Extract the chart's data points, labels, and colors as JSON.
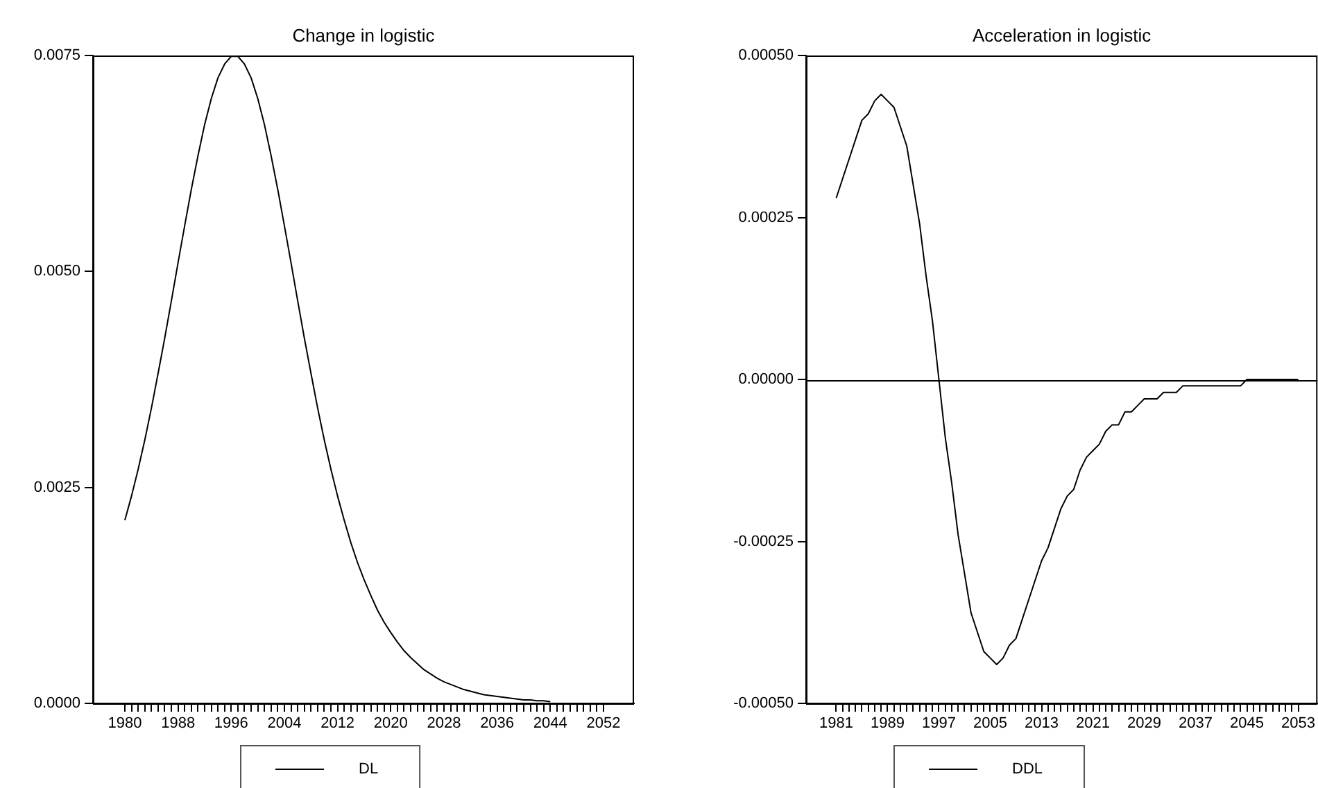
{
  "chart_data": [
    {
      "type": "line",
      "title": "Change in logistic",
      "legend": "bottom",
      "x": [
        1980,
        1981,
        1982,
        1983,
        1984,
        1985,
        1986,
        1987,
        1988,
        1989,
        1990,
        1991,
        1992,
        1993,
        1994,
        1995,
        1996,
        1997,
        1998,
        1999,
        2000,
        2001,
        2002,
        2003,
        2004,
        2005,
        2006,
        2007,
        2008,
        2009,
        2010,
        2011,
        2012,
        2013,
        2014,
        2015,
        2016,
        2017,
        2018,
        2019,
        2020,
        2021,
        2022,
        2023,
        2024,
        2025,
        2026,
        2027,
        2028,
        2029,
        2030,
        2031,
        2032,
        2033,
        2034,
        2035,
        2036,
        2037,
        2038,
        2039,
        2040,
        2041,
        2042,
        2043,
        2044
      ],
      "series": [
        {
          "name": "DL",
          "color": "#000000",
          "values": [
            0.00212,
            0.0024,
            0.00271,
            0.00305,
            0.00342,
            0.00382,
            0.00423,
            0.00466,
            0.0051,
            0.00553,
            0.00595,
            0.00634,
            0.0067,
            0.007,
            0.00724,
            0.0074,
            0.00749,
            0.00749,
            0.0074,
            0.00724,
            0.007,
            0.0067,
            0.00634,
            0.00595,
            0.00553,
            0.0051,
            0.00466,
            0.00423,
            0.00382,
            0.00342,
            0.00305,
            0.00271,
            0.0024,
            0.00212,
            0.00186,
            0.00163,
            0.00143,
            0.00125,
            0.00108,
            0.00094,
            0.00082,
            0.00071,
            0.00061,
            0.00053,
            0.00046,
            0.00039,
            0.00034,
            0.00029,
            0.00025,
            0.00022,
            0.00019,
            0.00016,
            0.00014,
            0.00012,
            0.0001,
            9e-05,
            8e-05,
            7e-05,
            6e-05,
            5e-05,
            4e-05,
            4e-05,
            3e-05,
            3e-05,
            2e-05
          ]
        }
      ],
      "xlim": [
        1975.2,
        2056.6
      ],
      "xticks": [
        {
          "value": 1980,
          "label": "1980"
        },
        {
          "value": 1981,
          "label": null
        },
        {
          "value": 1982,
          "label": null
        },
        {
          "value": 1983,
          "label": null
        },
        {
          "value": 1984,
          "label": null
        },
        {
          "value": 1985,
          "label": null
        },
        {
          "value": 1986,
          "label": null
        },
        {
          "value": 1987,
          "label": null
        },
        {
          "value": 1988,
          "label": "1988"
        },
        {
          "value": 1989,
          "label": null
        },
        {
          "value": 1990,
          "label": null
        },
        {
          "value": 1991,
          "label": null
        },
        {
          "value": 1992,
          "label": null
        },
        {
          "value": 1993,
          "label": null
        },
        {
          "value": 1994,
          "label": null
        },
        {
          "value": 1995,
          "label": null
        },
        {
          "value": 1996,
          "label": "1996"
        },
        {
          "value": 1997,
          "label": null
        },
        {
          "value": 1998,
          "label": null
        },
        {
          "value": 1999,
          "label": null
        },
        {
          "value": 2000,
          "label": null
        },
        {
          "value": 2001,
          "label": null
        },
        {
          "value": 2002,
          "label": null
        },
        {
          "value": 2003,
          "label": null
        },
        {
          "value": 2004,
          "label": "2004"
        },
        {
          "value": 2005,
          "label": null
        },
        {
          "value": 2006,
          "label": null
        },
        {
          "value": 2007,
          "label": null
        },
        {
          "value": 2008,
          "label": null
        },
        {
          "value": 2009,
          "label": null
        },
        {
          "value": 2010,
          "label": null
        },
        {
          "value": 2011,
          "label": null
        },
        {
          "value": 2012,
          "label": "2012"
        },
        {
          "value": 2013,
          "label": null
        },
        {
          "value": 2014,
          "label": null
        },
        {
          "value": 2015,
          "label": null
        },
        {
          "value": 2016,
          "label": null
        },
        {
          "value": 2017,
          "label": null
        },
        {
          "value": 2018,
          "label": null
        },
        {
          "value": 2019,
          "label": null
        },
        {
          "value": 2020,
          "label": "2020"
        },
        {
          "value": 2021,
          "label": null
        },
        {
          "value": 2022,
          "label": null
        },
        {
          "value": 2023,
          "label": null
        },
        {
          "value": 2024,
          "label": null
        },
        {
          "value": 2025,
          "label": null
        },
        {
          "value": 2026,
          "label": null
        },
        {
          "value": 2027,
          "label": null
        },
        {
          "value": 2028,
          "label": "2028"
        },
        {
          "value": 2029,
          "label": null
        },
        {
          "value": 2030,
          "label": null
        },
        {
          "value": 2031,
          "label": null
        },
        {
          "value": 2032,
          "label": null
        },
        {
          "value": 2033,
          "label": null
        },
        {
          "value": 2034,
          "label": null
        },
        {
          "value": 2035,
          "label": null
        },
        {
          "value": 2036,
          "label": "2036"
        },
        {
          "value": 2037,
          "label": null
        },
        {
          "value": 2038,
          "label": null
        },
        {
          "value": 2039,
          "label": null
        },
        {
          "value": 2040,
          "label": null
        },
        {
          "value": 2041,
          "label": null
        },
        {
          "value": 2042,
          "label": null
        },
        {
          "value": 2043,
          "label": null
        },
        {
          "value": 2044,
          "label": "2044"
        },
        {
          "value": 2045,
          "label": null
        },
        {
          "value": 2046,
          "label": null
        },
        {
          "value": 2047,
          "label": null
        },
        {
          "value": 2048,
          "label": null
        },
        {
          "value": 2049,
          "label": null
        },
        {
          "value": 2050,
          "label": null
        },
        {
          "value": 2051,
          "label": null
        },
        {
          "value": 2052,
          "label": "2052"
        }
      ],
      "ylim": [
        0,
        0.0075
      ],
      "yticks": [
        {
          "value": 0,
          "label": "0.0000"
        },
        {
          "value": 0.0025,
          "label": "0.0025"
        },
        {
          "value": 0.005,
          "label": "0.0050"
        },
        {
          "value": 0.0075,
          "label": "0.0075"
        }
      ]
    },
    {
      "type": "line",
      "title": "Acceleration in logistic",
      "legend": "bottom",
      "x": [
        1981,
        1982,
        1983,
        1984,
        1985,
        1986,
        1987,
        1988,
        1989,
        1990,
        1991,
        1992,
        1993,
        1994,
        1995,
        1996,
        1997,
        1998,
        1999,
        2000,
        2001,
        2002,
        2003,
        2004,
        2005,
        2006,
        2007,
        2008,
        2009,
        2010,
        2011,
        2012,
        2013,
        2014,
        2015,
        2016,
        2017,
        2018,
        2019,
        2020,
        2021,
        2022,
        2023,
        2024,
        2025,
        2026,
        2027,
        2028,
        2029,
        2030,
        2031,
        2032,
        2033,
        2034,
        2035,
        2036,
        2037,
        2038,
        2039,
        2040,
        2041,
        2042,
        2043,
        2044,
        2045,
        2046,
        2047,
        2048,
        2049,
        2050,
        2051,
        2052,
        2053
      ],
      "series": [
        {
          "name": "DDL",
          "color": "#000000",
          "values": [
            0.00028,
            0.00031,
            0.00034,
            0.00037,
            0.0004,
            0.00041,
            0.00043,
            0.00044,
            0.00043,
            0.00042,
            0.00039,
            0.00036,
            0.0003,
            0.00024,
            0.00016,
            9e-05,
            0,
            -9e-05,
            -0.00016,
            -0.00024,
            -0.0003,
            -0.00036,
            -0.00039,
            -0.00042,
            -0.00043,
            -0.00044,
            -0.00043,
            -0.00041,
            -0.0004,
            -0.00037,
            -0.00034,
            -0.00031,
            -0.00028,
            -0.00026,
            -0.00023,
            -0.0002,
            -0.00018,
            -0.00017,
            -0.00014,
            -0.00012,
            -0.00011,
            -0.0001,
            -8e-05,
            -7e-05,
            -7e-05,
            -5e-05,
            -5e-05,
            -4e-05,
            -3e-05,
            -3e-05,
            -3e-05,
            -2e-05,
            -2e-05,
            -2e-05,
            -1e-05,
            -1e-05,
            -1e-05,
            -1e-05,
            -1e-05,
            -1e-05,
            -1e-05,
            -1e-05,
            -1e-05,
            -1e-05,
            0,
            0,
            0,
            0,
            0,
            0,
            0,
            0,
            0
          ]
        }
      ],
      "xlim": [
        1976.3,
        2056
      ],
      "xticks": [
        {
          "value": 1981,
          "label": "1981"
        },
        {
          "value": 1982,
          "label": null
        },
        {
          "value": 1983,
          "label": null
        },
        {
          "value": 1984,
          "label": null
        },
        {
          "value": 1985,
          "label": null
        },
        {
          "value": 1986,
          "label": null
        },
        {
          "value": 1987,
          "label": null
        },
        {
          "value": 1988,
          "label": null
        },
        {
          "value": 1989,
          "label": "1989"
        },
        {
          "value": 1990,
          "label": null
        },
        {
          "value": 1991,
          "label": null
        },
        {
          "value": 1992,
          "label": null
        },
        {
          "value": 1993,
          "label": null
        },
        {
          "value": 1994,
          "label": null
        },
        {
          "value": 1995,
          "label": null
        },
        {
          "value": 1996,
          "label": null
        },
        {
          "value": 1997,
          "label": "1997"
        },
        {
          "value": 1998,
          "label": null
        },
        {
          "value": 1999,
          "label": null
        },
        {
          "value": 2000,
          "label": null
        },
        {
          "value": 2001,
          "label": null
        },
        {
          "value": 2002,
          "label": null
        },
        {
          "value": 2003,
          "label": null
        },
        {
          "value": 2004,
          "label": null
        },
        {
          "value": 2005,
          "label": "2005"
        },
        {
          "value": 2006,
          "label": null
        },
        {
          "value": 2007,
          "label": null
        },
        {
          "value": 2008,
          "label": null
        },
        {
          "value": 2009,
          "label": null
        },
        {
          "value": 2010,
          "label": null
        },
        {
          "value": 2011,
          "label": null
        },
        {
          "value": 2012,
          "label": null
        },
        {
          "value": 2013,
          "label": "2013"
        },
        {
          "value": 2014,
          "label": null
        },
        {
          "value": 2015,
          "label": null
        },
        {
          "value": 2016,
          "label": null
        },
        {
          "value": 2017,
          "label": null
        },
        {
          "value": 2018,
          "label": null
        },
        {
          "value": 2019,
          "label": null
        },
        {
          "value": 2020,
          "label": null
        },
        {
          "value": 2021,
          "label": "2021"
        },
        {
          "value": 2022,
          "label": null
        },
        {
          "value": 2023,
          "label": null
        },
        {
          "value": 2024,
          "label": null
        },
        {
          "value": 2025,
          "label": null
        },
        {
          "value": 2026,
          "label": null
        },
        {
          "value": 2027,
          "label": null
        },
        {
          "value": 2028,
          "label": null
        },
        {
          "value": 2029,
          "label": "2029"
        },
        {
          "value": 2030,
          "label": null
        },
        {
          "value": 2031,
          "label": null
        },
        {
          "value": 2032,
          "label": null
        },
        {
          "value": 2033,
          "label": null
        },
        {
          "value": 2034,
          "label": null
        },
        {
          "value": 2035,
          "label": null
        },
        {
          "value": 2036,
          "label": null
        },
        {
          "value": 2037,
          "label": "2037"
        },
        {
          "value": 2038,
          "label": null
        },
        {
          "value": 2039,
          "label": null
        },
        {
          "value": 2040,
          "label": null
        },
        {
          "value": 2041,
          "label": null
        },
        {
          "value": 2042,
          "label": null
        },
        {
          "value": 2043,
          "label": null
        },
        {
          "value": 2044,
          "label": null
        },
        {
          "value": 2045,
          "label": "2045"
        },
        {
          "value": 2046,
          "label": null
        },
        {
          "value": 2047,
          "label": null
        },
        {
          "value": 2048,
          "label": null
        },
        {
          "value": 2049,
          "label": null
        },
        {
          "value": 2050,
          "label": null
        },
        {
          "value": 2051,
          "label": null
        },
        {
          "value": 2052,
          "label": null
        },
        {
          "value": 2053,
          "label": "2053"
        }
      ],
      "ylim": [
        -0.0005,
        0.0005
      ],
      "yticks": [
        {
          "value": -0.0005,
          "label": "-0.00050"
        },
        {
          "value": -0.00025,
          "label": "-0.00025"
        },
        {
          "value": 0,
          "label": "0.00000"
        },
        {
          "value": 0.00025,
          "label": "0.00025"
        },
        {
          "value": 0.0005,
          "label": "0.00050"
        }
      ],
      "ref_lines": [
        {
          "axis": "y",
          "value": 0,
          "color": "#000000"
        }
      ]
    }
  ]
}
